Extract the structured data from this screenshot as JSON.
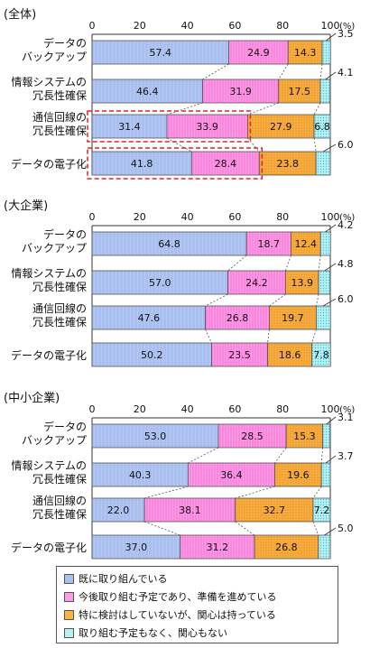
{
  "chart_data": {
    "type": "bar",
    "orientation": "horizontal",
    "stacked": true,
    "xlim": [
      0,
      100
    ],
    "x_ticks": [
      "0",
      "20",
      "40",
      "60",
      "80",
      "100"
    ],
    "unit_label": "(%)",
    "series": [
      {
        "name": "既に取り組んでいる",
        "color": "#a9bff0"
      },
      {
        "name": "今後取り組む予定であり、準備を進めている",
        "color": "#ff9ce6"
      },
      {
        "name": "特に検討はしていないが、関心は持っている",
        "color": "#ffb347"
      },
      {
        "name": "取り組む予定もなく、関心もない",
        "color": "#b7f0f5"
      }
    ],
    "panels": [
      {
        "title": "(全体)",
        "categories": [
          {
            "label": [
              "データの",
              "バックアップ"
            ],
            "values": [
              57.4,
              24.9,
              14.3,
              3.5
            ],
            "inside": [
              "57.4",
              "24.9",
              "14.3",
              ""
            ],
            "outside": "3.5"
          },
          {
            "label": [
              "情報システムの",
              "冗長性確保"
            ],
            "values": [
              46.4,
              31.9,
              17.5,
              4.1
            ],
            "inside": [
              "46.4",
              "31.9",
              "17.5",
              ""
            ],
            "outside": "4.1"
          },
          {
            "label": [
              "通信回線の",
              "冗長性確保"
            ],
            "values": [
              31.4,
              33.9,
              27.9,
              6.8
            ],
            "inside": [
              "31.4",
              "33.9",
              "27.9",
              "6.8"
            ],
            "outside": ""
          },
          {
            "label": [
              "データの電子化"
            ],
            "values": [
              41.8,
              28.4,
              23.8,
              6.0
            ],
            "inside": [
              "41.8",
              "28.4",
              "23.8",
              ""
            ],
            "outside": "6.0"
          }
        ]
      },
      {
        "title": "(大企業)",
        "categories": [
          {
            "label": [
              "データの",
              "バックアップ"
            ],
            "values": [
              64.8,
              18.7,
              12.4,
              4.2
            ],
            "inside": [
              "64.8",
              "18.7",
              "12.4",
              ""
            ],
            "outside": "4.2"
          },
          {
            "label": [
              "情報システムの",
              "冗長性確保"
            ],
            "values": [
              57.0,
              24.2,
              13.9,
              4.8
            ],
            "inside": [
              "57.0",
              "24.2",
              "13.9",
              ""
            ],
            "outside": "4.8"
          },
          {
            "label": [
              "通信回線の",
              "冗長性確保"
            ],
            "values": [
              47.6,
              26.8,
              19.7,
              6.0
            ],
            "inside": [
              "47.6",
              "26.8",
              "19.7",
              ""
            ],
            "outside": "6.0"
          },
          {
            "label": [
              "データの電子化"
            ],
            "values": [
              50.2,
              23.5,
              18.6,
              7.8
            ],
            "inside": [
              "50.2",
              "23.5",
              "18.6",
              "7.8"
            ],
            "outside": ""
          }
        ]
      },
      {
        "title": "(中小企業)",
        "categories": [
          {
            "label": [
              "データの",
              "バックアップ"
            ],
            "values": [
              53.0,
              28.5,
              15.3,
              3.1
            ],
            "inside": [
              "53.0",
              "28.5",
              "15.3",
              ""
            ],
            "outside": "3.1"
          },
          {
            "label": [
              "情報システムの",
              "冗長性確保"
            ],
            "values": [
              40.3,
              36.4,
              19.6,
              3.7
            ],
            "inside": [
              "40.3",
              "36.4",
              "19.6",
              ""
            ],
            "outside": "3.7"
          },
          {
            "label": [
              "通信回線の",
              "冗長性確保"
            ],
            "values": [
              22.0,
              38.1,
              32.7,
              7.2
            ],
            "inside": [
              "22.0",
              "38.1",
              "32.7",
              "7.2"
            ],
            "outside": ""
          },
          {
            "label": [
              "データの電子化"
            ],
            "values": [
              37.0,
              31.2,
              26.8,
              5.0
            ],
            "inside": [
              "37.0",
              "31.2",
              "26.8",
              ""
            ],
            "outside": "5.0"
          }
        ]
      }
    ]
  }
}
